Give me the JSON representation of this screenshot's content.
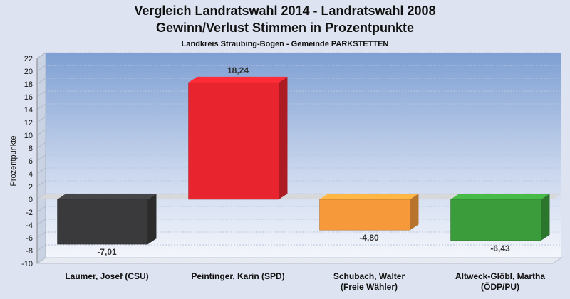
{
  "chart_data": {
    "type": "bar",
    "title": "Vergleich Landratswahl 2014 - Landratswahl 2008",
    "subtitle": "Gewinn/Verlust Stimmen in Prozentpunkte",
    "subtitle2": "Landkreis Straubing-Bogen - Gemeinde PARKSTETTEN",
    "ylabel": "Prozentpunkte",
    "xlabel": "",
    "ylim": [
      -10,
      22
    ],
    "ytick_step": 2,
    "grid": true,
    "categories": [
      [
        "Laumer, Josef (CSU)"
      ],
      [
        "Peintinger, Karin (SPD)"
      ],
      [
        "Schubach, Walter",
        "(Freie Wähler)"
      ],
      [
        "Altweck-Glöbl, Martha",
        "(ÖDP/PU)"
      ]
    ],
    "values": [
      -7.01,
      18.24,
      -4.8,
      -6.43
    ],
    "value_labels": [
      "-7,01",
      "18,24",
      "-4,80",
      "-6,43"
    ],
    "colors": [
      "#3a3a3c",
      "#e8252f",
      "#f5993a",
      "#3b9c3b"
    ]
  }
}
